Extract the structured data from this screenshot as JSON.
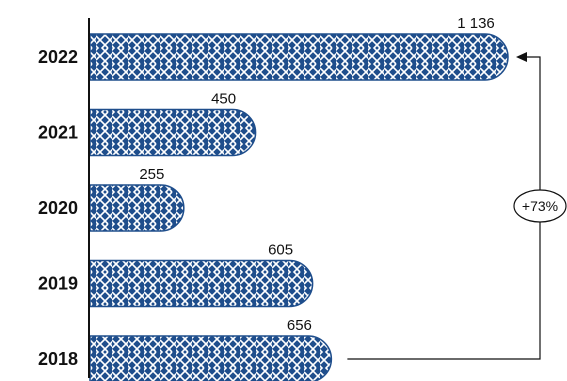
{
  "chart_data": {
    "type": "bar",
    "orientation": "horizontal",
    "categories": [
      "2022",
      "2021",
      "2020",
      "2019",
      "2018"
    ],
    "values": [
      1136,
      450,
      255,
      605,
      656
    ],
    "value_labels": [
      "1 136",
      "450",
      "255",
      "605",
      "656"
    ],
    "bar_pattern": "basket-weave",
    "colors": {
      "bar_fill": "#1f4e8c",
      "bar_pattern_line": "#ffffff",
      "axis": "#111111",
      "annotation": "#111111"
    },
    "annotation": {
      "label": "+73%",
      "from": "2018",
      "to": "2022",
      "style": "bracket-arrow"
    },
    "grid": false,
    "legend": "none"
  }
}
